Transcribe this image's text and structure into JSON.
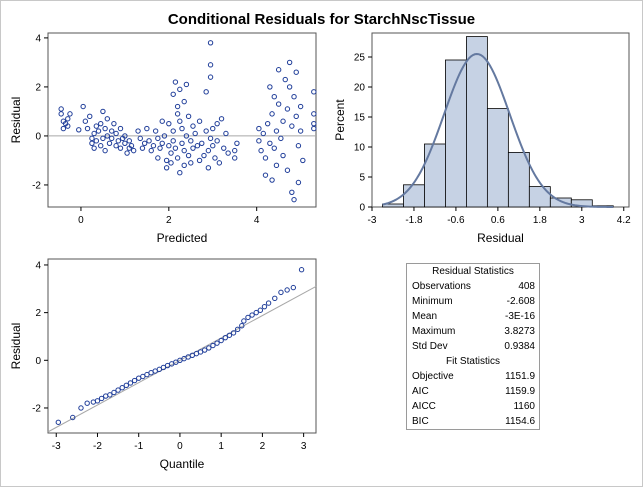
{
  "title": "Conditional Residuals for StarchNscTissue",
  "colors": {
    "marker": "#1f3d99",
    "refline": "#a8a8a8",
    "bar_fill": "#c6d2e4",
    "bar_edge": "#000000",
    "curve": "#6479a0",
    "axis": "#000000"
  },
  "chart_data": [
    {
      "id": "residual-vs-predicted",
      "type": "scatter",
      "xlabel": "Predicted",
      "ylabel": "Residual",
      "xlim": [
        -0.75,
        5.35
      ],
      "ylim": [
        -2.9,
        4.2
      ],
      "xticks": [
        0,
        2,
        4
      ],
      "yticks": [
        -2,
        0,
        2,
        4
      ],
      "reference_line_y": 0,
      "points": [
        [
          -0.45,
          1.1
        ],
        [
          -0.45,
          0.9
        ],
        [
          -0.4,
          0.6
        ],
        [
          -0.3,
          0.4
        ],
        [
          -0.35,
          0.5
        ],
        [
          -0.25,
          0.9
        ],
        [
          -0.4,
          0.3
        ],
        [
          -0.3,
          0.7
        ],
        [
          -0.05,
          0.25
        ],
        [
          0.05,
          1.2
        ],
        [
          0.1,
          0.6
        ],
        [
          0.15,
          0.3
        ],
        [
          0.2,
          0.8
        ],
        [
          0.25,
          -0.1
        ],
        [
          0.25,
          -0.3
        ],
        [
          0.3,
          0.1
        ],
        [
          0.3,
          -0.5
        ],
        [
          0.35,
          0.4
        ],
        [
          0.35,
          -0.2
        ],
        [
          0.4,
          0.2
        ],
        [
          0.45,
          0.5
        ],
        [
          0.45,
          -0.4
        ],
        [
          0.5,
          1.0
        ],
        [
          0.5,
          -0.1
        ],
        [
          0.55,
          0.3
        ],
        [
          0.55,
          -0.6
        ],
        [
          0.6,
          0.0
        ],
        [
          0.6,
          0.7
        ],
        [
          0.65,
          -0.3
        ],
        [
          0.7,
          0.2
        ],
        [
          0.7,
          -0.1
        ],
        [
          0.75,
          0.5
        ],
        [
          0.8,
          -0.4
        ],
        [
          0.8,
          0.1
        ],
        [
          0.85,
          -0.2
        ],
        [
          0.9,
          0.3
        ],
        [
          0.9,
          -0.5
        ],
        [
          0.95,
          -0.1
        ],
        [
          1.0,
          -0.3
        ],
        [
          1.0,
          0.0
        ],
        [
          1.05,
          -0.7
        ],
        [
          1.1,
          -0.2
        ],
        [
          1.1,
          -0.5
        ],
        [
          1.15,
          -0.4
        ],
        [
          1.2,
          -0.6
        ],
        [
          1.3,
          0.2
        ],
        [
          1.35,
          -0.1
        ],
        [
          1.4,
          -0.5
        ],
        [
          1.45,
          -0.3
        ],
        [
          1.5,
          0.3
        ],
        [
          1.55,
          -0.2
        ],
        [
          1.6,
          -0.6
        ],
        [
          1.65,
          -0.4
        ],
        [
          1.7,
          0.2
        ],
        [
          1.75,
          -0.1
        ],
        [
          1.75,
          -0.9
        ],
        [
          1.8,
          -0.5
        ],
        [
          1.85,
          -0.3
        ],
        [
          1.85,
          0.6
        ],
        [
          1.9,
          0.0
        ],
        [
          1.95,
          -1.0
        ],
        [
          1.95,
          -1.3
        ],
        [
          2.0,
          -0.4
        ],
        [
          2.0,
          0.5
        ],
        [
          2.05,
          -0.7
        ],
        [
          2.05,
          -1.1
        ],
        [
          2.1,
          1.7
        ],
        [
          2.1,
          0.2
        ],
        [
          2.1,
          -0.2
        ],
        [
          2.15,
          2.2
        ],
        [
          2.15,
          -0.5
        ],
        [
          2.2,
          1.2
        ],
        [
          2.2,
          0.9
        ],
        [
          2.2,
          -0.9
        ],
        [
          2.25,
          1.9
        ],
        [
          2.25,
          0.6
        ],
        [
          2.25,
          -1.5
        ],
        [
          2.3,
          0.3
        ],
        [
          2.3,
          -0.3
        ],
        [
          2.35,
          1.4
        ],
        [
          2.35,
          -0.6
        ],
        [
          2.35,
          -1.2
        ],
        [
          2.4,
          2.1
        ],
        [
          2.4,
          0.0
        ],
        [
          2.45,
          0.8
        ],
        [
          2.45,
          -0.8
        ],
        [
          2.5,
          -0.2
        ],
        [
          2.5,
          -1.1
        ],
        [
          2.55,
          0.4
        ],
        [
          2.55,
          -0.5
        ],
        [
          2.6,
          0.1
        ],
        [
          2.65,
          -0.4
        ],
        [
          2.7,
          -1.0
        ],
        [
          2.7,
          0.6
        ],
        [
          2.75,
          -0.3
        ],
        [
          2.8,
          -0.8
        ],
        [
          2.85,
          1.8
        ],
        [
          2.85,
          0.2
        ],
        [
          2.9,
          -0.6
        ],
        [
          2.9,
          -1.3
        ],
        [
          2.95,
          2.4
        ],
        [
          2.95,
          -0.1
        ],
        [
          2.95,
          3.8
        ],
        [
          2.95,
          2.9
        ],
        [
          3.0,
          0.3
        ],
        [
          3.0,
          -0.4
        ],
        [
          3.05,
          -0.9
        ],
        [
          3.1,
          0.5
        ],
        [
          3.1,
          -0.2
        ],
        [
          3.15,
          -1.1
        ],
        [
          3.2,
          0.7
        ],
        [
          3.25,
          -0.5
        ],
        [
          3.3,
          0.1
        ],
        [
          3.35,
          -0.7
        ],
        [
          3.5,
          -0.6
        ],
        [
          3.5,
          -0.9
        ],
        [
          3.55,
          -0.3
        ],
        [
          4.05,
          -0.2
        ],
        [
          4.05,
          0.3
        ],
        [
          4.1,
          -0.6
        ],
        [
          4.15,
          0.1
        ],
        [
          4.2,
          -0.9
        ],
        [
          4.2,
          -1.6
        ],
        [
          4.25,
          0.5
        ],
        [
          4.3,
          -0.3
        ],
        [
          4.3,
          2.0
        ],
        [
          4.35,
          0.9
        ],
        [
          4.35,
          -1.8
        ],
        [
          4.4,
          1.6
        ],
        [
          4.4,
          -0.5
        ],
        [
          4.45,
          0.2
        ],
        [
          4.45,
          -1.2
        ],
        [
          4.5,
          1.3
        ],
        [
          4.5,
          2.7
        ],
        [
          4.55,
          -0.1
        ],
        [
          4.6,
          0.6
        ],
        [
          4.6,
          -0.8
        ],
        [
          4.65,
          2.3
        ],
        [
          4.7,
          1.1
        ],
        [
          4.7,
          -1.4
        ],
        [
          4.75,
          2.0
        ],
        [
          4.75,
          3.0
        ],
        [
          4.8,
          0.4
        ],
        [
          4.8,
          -2.3
        ],
        [
          4.85,
          1.6
        ],
        [
          4.85,
          -2.6
        ],
        [
          4.9,
          0.8
        ],
        [
          4.9,
          2.6
        ],
        [
          4.95,
          -0.4
        ],
        [
          4.95,
          -1.9
        ],
        [
          5.0,
          1.2
        ],
        [
          5.0,
          0.2
        ],
        [
          5.05,
          -1.0
        ],
        [
          5.3,
          1.8
        ],
        [
          5.3,
          0.9
        ],
        [
          5.3,
          0.5
        ],
        [
          5.3,
          0.3
        ]
      ]
    },
    {
      "id": "residual-histogram",
      "type": "bar",
      "xlabel": "Residual",
      "ylabel": "Percent",
      "xlim": [
        -3.0,
        4.35
      ],
      "ylim": [
        0,
        29
      ],
      "xticks": [
        -3,
        -1.8,
        -0.6,
        0.6,
        1.8,
        3,
        4.2
      ],
      "xtick_labels": [
        "-3",
        "-1.8",
        "-0.6",
        "0.6",
        "1.8",
        "3",
        "4.2"
      ],
      "yticks": [
        0,
        5,
        10,
        15,
        20,
        25
      ],
      "bin_edges": [
        -2.7,
        -2.1,
        -1.5,
        -0.9,
        -0.3,
        0.3,
        0.9,
        1.5,
        2.1,
        2.7,
        3.3,
        3.9
      ],
      "values": [
        0.5,
        3.7,
        10.5,
        24.5,
        28.4,
        16.4,
        9.1,
        3.4,
        1.5,
        1.2,
        0.2
      ],
      "density_curve": {
        "type": "normal",
        "mean": 0,
        "sd": 0.9384
      }
    },
    {
      "id": "residual-qq",
      "type": "scatter",
      "xlabel": "Quantile",
      "ylabel": "Residual",
      "xlim": [
        -3.2,
        3.3
      ],
      "ylim": [
        -3.05,
        4.25
      ],
      "xticks": [
        -3,
        -2,
        -1,
        0,
        1,
        2,
        3
      ],
      "yticks": [
        -2,
        0,
        2,
        4
      ],
      "reference_line": {
        "intercept": 0,
        "slope": 0.9384
      },
      "points": [
        [
          -2.95,
          -2.6
        ],
        [
          -2.6,
          -2.4
        ],
        [
          -2.4,
          -2.0
        ],
        [
          -2.25,
          -1.8
        ],
        [
          -2.1,
          -1.75
        ],
        [
          -2.0,
          -1.7
        ],
        [
          -1.9,
          -1.6
        ],
        [
          -1.8,
          -1.5
        ],
        [
          -1.7,
          -1.45
        ],
        [
          -1.6,
          -1.35
        ],
        [
          -1.5,
          -1.25
        ],
        [
          -1.4,
          -1.15
        ],
        [
          -1.3,
          -1.05
        ],
        [
          -1.2,
          -0.95
        ],
        [
          -1.1,
          -0.85
        ],
        [
          -1.0,
          -0.75
        ],
        [
          -0.9,
          -0.68
        ],
        [
          -0.8,
          -0.6
        ],
        [
          -0.7,
          -0.52
        ],
        [
          -0.6,
          -0.45
        ],
        [
          -0.5,
          -0.38
        ],
        [
          -0.4,
          -0.3
        ],
        [
          -0.3,
          -0.22
        ],
        [
          -0.2,
          -0.15
        ],
        [
          -0.1,
          -0.08
        ],
        [
          0.0,
          0.0
        ],
        [
          0.1,
          0.07
        ],
        [
          0.2,
          0.14
        ],
        [
          0.3,
          0.21
        ],
        [
          0.4,
          0.28
        ],
        [
          0.5,
          0.35
        ],
        [
          0.6,
          0.43
        ],
        [
          0.7,
          0.52
        ],
        [
          0.8,
          0.62
        ],
        [
          0.9,
          0.72
        ],
        [
          1.0,
          0.83
        ],
        [
          1.1,
          0.95
        ],
        [
          1.2,
          1.05
        ],
        [
          1.3,
          1.15
        ],
        [
          1.4,
          1.3
        ],
        [
          1.5,
          1.45
        ],
        [
          1.55,
          1.65
        ],
        [
          1.65,
          1.8
        ],
        [
          1.75,
          1.9
        ],
        [
          1.85,
          2.0
        ],
        [
          1.95,
          2.1
        ],
        [
          2.05,
          2.25
        ],
        [
          2.15,
          2.4
        ],
        [
          2.3,
          2.6
        ],
        [
          2.45,
          2.85
        ],
        [
          2.6,
          2.95
        ],
        [
          2.75,
          3.05
        ],
        [
          2.95,
          3.8
        ]
      ]
    }
  ],
  "stats_table": {
    "residual_header": "Residual Statistics",
    "residual_rows": [
      {
        "label": "Observations",
        "value": "408"
      },
      {
        "label": "Minimum",
        "value": "-2.608"
      },
      {
        "label": "Mean",
        "value": "-3E-16"
      },
      {
        "label": "Maximum",
        "value": "3.8273"
      },
      {
        "label": "Std Dev",
        "value": "0.9384"
      }
    ],
    "fit_header": "Fit Statistics",
    "fit_rows": [
      {
        "label": "Objective",
        "value": "1151.9"
      },
      {
        "label": "AIC",
        "value": "1159.9"
      },
      {
        "label": "AICC",
        "value": "1160"
      },
      {
        "label": "BIC",
        "value": "1154.6"
      }
    ]
  }
}
